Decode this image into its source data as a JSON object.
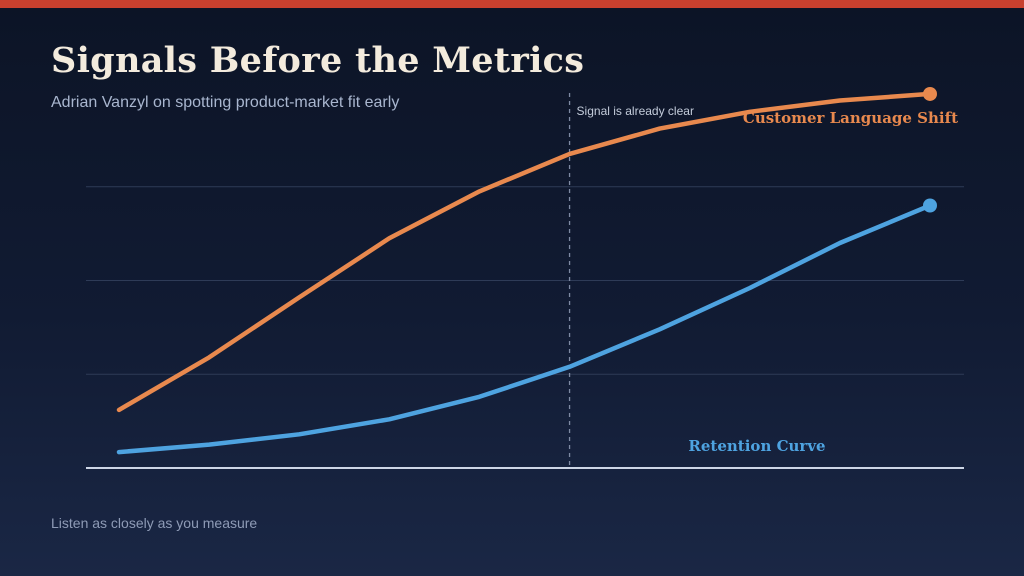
{
  "page": {
    "title": "Signals Before the Metrics",
    "subtitle": "Adrian Vanzyl on spotting product-market fit early",
    "footer": "Listen as closely as you measure",
    "accent_color": "#c9402e"
  },
  "chart_data": {
    "type": "line",
    "title": "",
    "xlabel": "",
    "ylabel": "",
    "x": [
      0,
      1,
      2,
      3,
      4,
      5,
      6,
      7,
      8,
      9
    ],
    "xlim": [
      0,
      9
    ],
    "ylim": [
      0,
      4
    ],
    "grid": true,
    "legend": "none",
    "annotation": {
      "x": 5.0,
      "label": "Signal is already clear"
    },
    "series": [
      {
        "name": "Customer Language Shift",
        "color": "#e8894e",
        "values": [
          0.62,
          1.18,
          1.82,
          2.45,
          2.95,
          3.35,
          3.62,
          3.8,
          3.92,
          3.99
        ]
      },
      {
        "name": "Retention Curve",
        "color": "#4ea3e0",
        "values": [
          0.17,
          0.25,
          0.36,
          0.52,
          0.76,
          1.08,
          1.48,
          1.92,
          2.4,
          2.8
        ]
      }
    ]
  }
}
